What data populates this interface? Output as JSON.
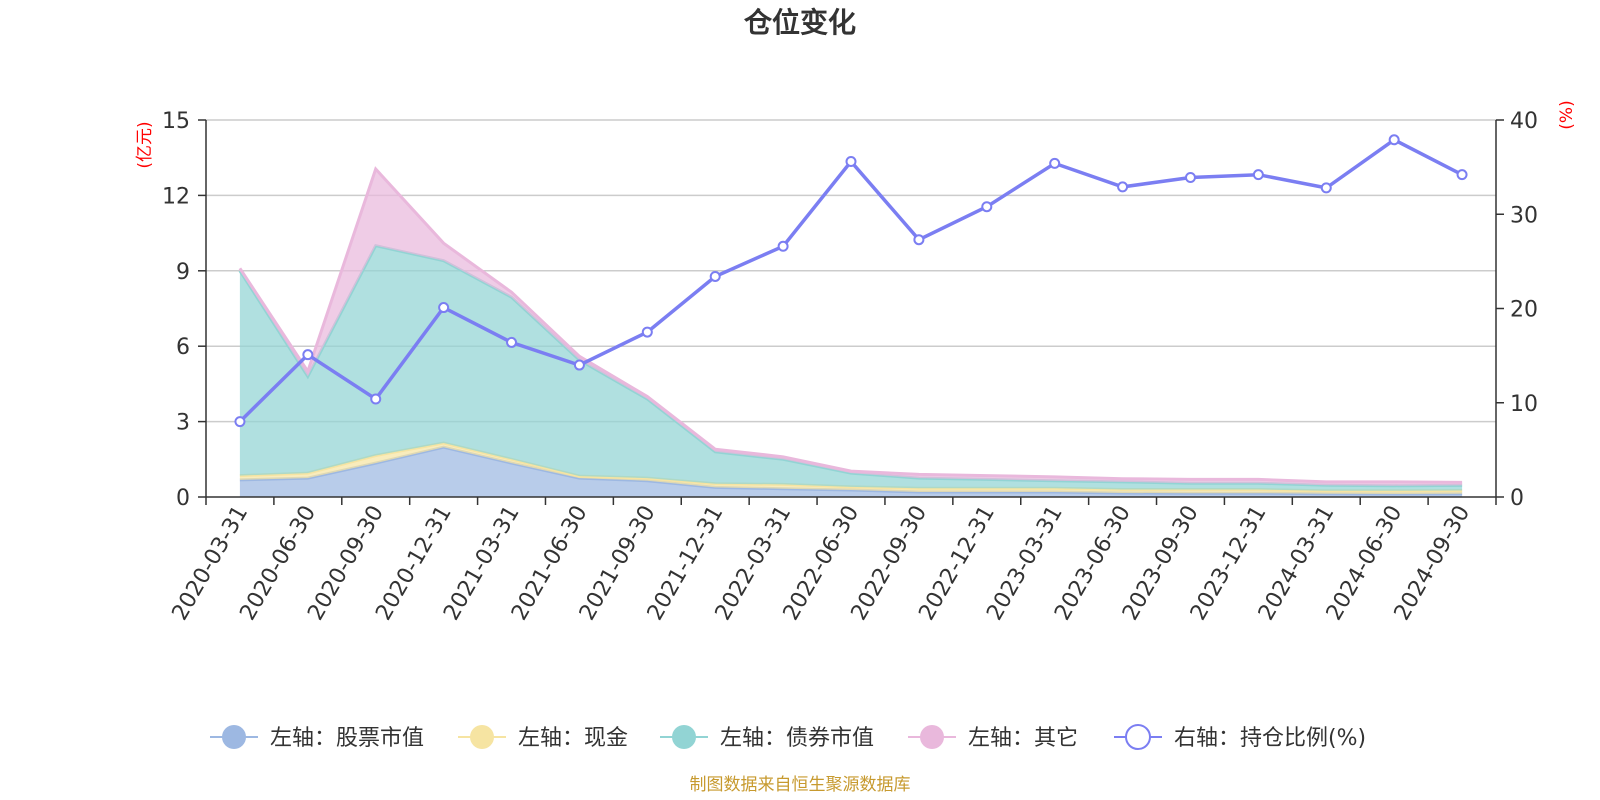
{
  "chart_data": {
    "type": "area",
    "title": "仓位变化",
    "categories": [
      "2020-03-31",
      "2020-06-30",
      "2020-09-30",
      "2020-12-31",
      "2021-03-31",
      "2021-06-30",
      "2021-09-30",
      "2021-12-31",
      "2022-03-31",
      "2022-06-30",
      "2022-09-30",
      "2022-12-31",
      "2023-03-31",
      "2023-06-30",
      "2023-09-30",
      "2023-12-31",
      "2024-03-31",
      "2024-06-30",
      "2024-09-30"
    ],
    "left_axis": {
      "unit": "(亿元)",
      "ylim": [
        0,
        15
      ],
      "ticks": [
        "0",
        "3",
        "6",
        "9",
        "12",
        "15"
      ]
    },
    "right_axis": {
      "unit": "(%)",
      "ylim": [
        0,
        40
      ],
      "ticks": [
        "0",
        "10",
        "20",
        "30",
        "40"
      ]
    },
    "series": [
      {
        "name": "左轴：股票市值",
        "type": "stacked-area",
        "axis": "left",
        "color": "#9db8e2",
        "values": [
          0.68,
          0.75,
          1.35,
          1.98,
          1.35,
          0.75,
          0.65,
          0.38,
          0.33,
          0.28,
          0.2,
          0.2,
          0.2,
          0.16,
          0.15,
          0.15,
          0.13,
          0.12,
          0.13
        ]
      },
      {
        "name": "左轴：现金",
        "type": "stacked-area",
        "axis": "left",
        "color": "#f6e4a2",
        "values": [
          0.17,
          0.2,
          0.3,
          0.17,
          0.15,
          0.08,
          0.1,
          0.15,
          0.17,
          0.12,
          0.15,
          0.15,
          0.15,
          0.14,
          0.15,
          0.15,
          0.12,
          0.13,
          0.13
        ]
      },
      {
        "name": "左轴：债券市值",
        "type": "stacked-area",
        "axis": "left",
        "color": "#92d4d4",
        "values": [
          8.15,
          3.85,
          8.35,
          7.25,
          6.45,
          4.62,
          3.15,
          1.27,
          1.0,
          0.55,
          0.4,
          0.35,
          0.3,
          0.3,
          0.25,
          0.25,
          0.22,
          0.2,
          0.2
        ]
      },
      {
        "name": "左轴：其它",
        "type": "stacked-area",
        "axis": "left",
        "color": "#e9b8dc",
        "values": [
          0.1,
          0.2,
          3.05,
          0.7,
          0.2,
          0.15,
          0.1,
          0.1,
          0.1,
          0.08,
          0.15,
          0.15,
          0.15,
          0.13,
          0.15,
          0.15,
          0.13,
          0.15,
          0.12
        ]
      },
      {
        "name": "右轴：持仓比例(%)",
        "type": "line",
        "axis": "right",
        "color": "#7b7ef2",
        "values": [
          8.0,
          15.1,
          10.4,
          20.1,
          16.4,
          14.0,
          17.5,
          23.4,
          26.6,
          35.6,
          27.3,
          30.8,
          35.4,
          32.9,
          33.9,
          34.2,
          32.8,
          37.9,
          34.2
        ]
      }
    ],
    "legend_position": "bottom",
    "grid": true
  },
  "source_note": "制图数据来自恒生聚源数据库"
}
